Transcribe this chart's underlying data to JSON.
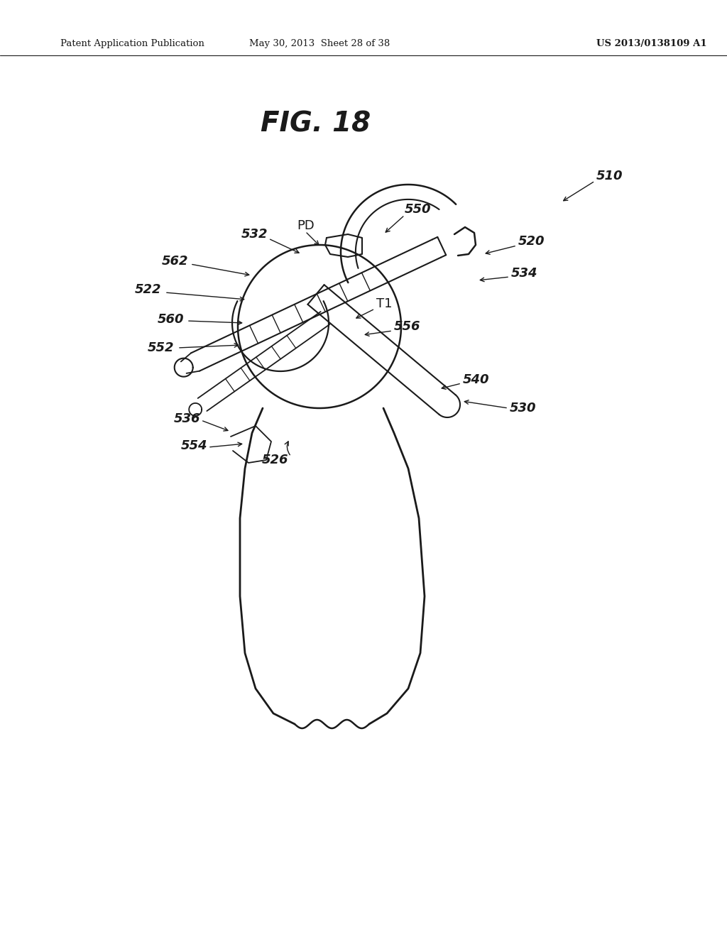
{
  "title": "FIG. 18",
  "header_left": "Patent Application Publication",
  "header_center": "May 30, 2013  Sheet 28 of 38",
  "header_right": "US 2013/0138109 A1",
  "bg_color": "#ffffff",
  "line_color": "#1a1a1a"
}
